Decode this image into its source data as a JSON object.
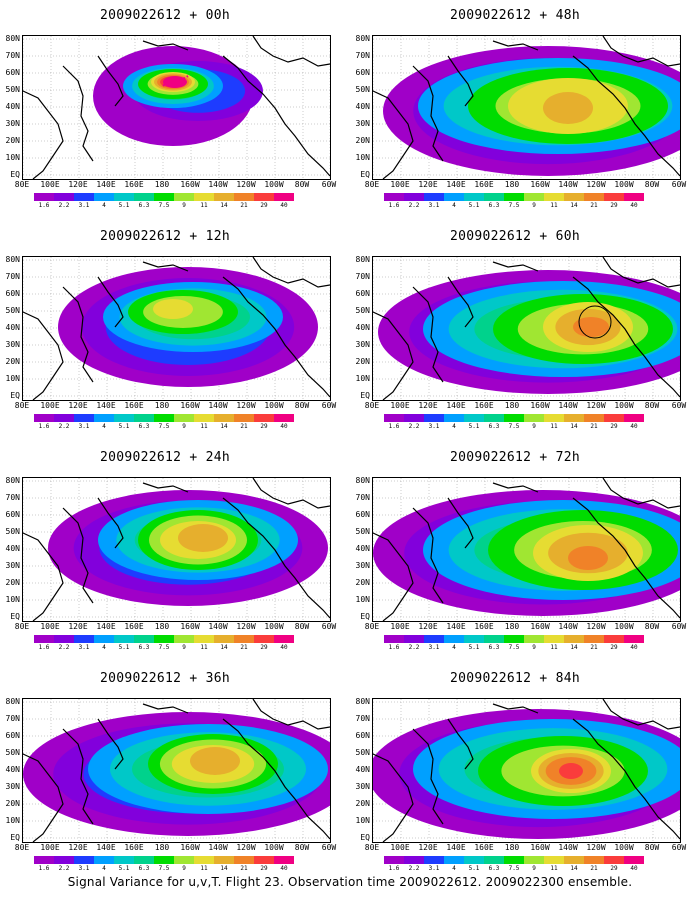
{
  "colors": {
    "levels": [
      "#a000c8",
      "#8200dc",
      "#1e3cff",
      "#00a0ff",
      "#00c8c8",
      "#00d28c",
      "#00dc00",
      "#a0e632",
      "#e6dc32",
      "#e6af2d",
      "#f08228",
      "#fa3c3c",
      "#f00082"
    ]
  },
  "colorbar": {
    "labels": [
      "1.6",
      "2.2",
      "3.1",
      "4",
      "5.1",
      "6.3",
      "7.5",
      "9",
      "11",
      "14",
      "21",
      "29",
      "40"
    ]
  },
  "axes": {
    "lat_labels": [
      "80N",
      "70N",
      "60N",
      "50N",
      "40N",
      "30N",
      "20N",
      "10N",
      "EQ"
    ],
    "lon_labels": [
      "80E",
      "100E",
      "120E",
      "140E",
      "160E",
      "180",
      "160W",
      "140W",
      "120W",
      "100W",
      "80W",
      "60W"
    ]
  },
  "panels": [
    {
      "title": "2009022612 + 00h",
      "max_level": 12
    },
    {
      "title": "2009022612 + 48h",
      "max_level": 9
    },
    {
      "title": "2009022612 + 12h",
      "max_level": 8
    },
    {
      "title": "2009022612 + 60h",
      "max_level": 10
    },
    {
      "title": "2009022612 + 24h",
      "max_level": 9
    },
    {
      "title": "2009022612 + 72h",
      "max_level": 10
    },
    {
      "title": "2009022612 + 36h",
      "max_level": 9
    },
    {
      "title": "2009022612 + 84h",
      "max_level": 11
    }
  ],
  "caption": "Signal Variance for u,v,T. Flight 23. Observation time 2009022612. 2009022300 ensemble."
}
